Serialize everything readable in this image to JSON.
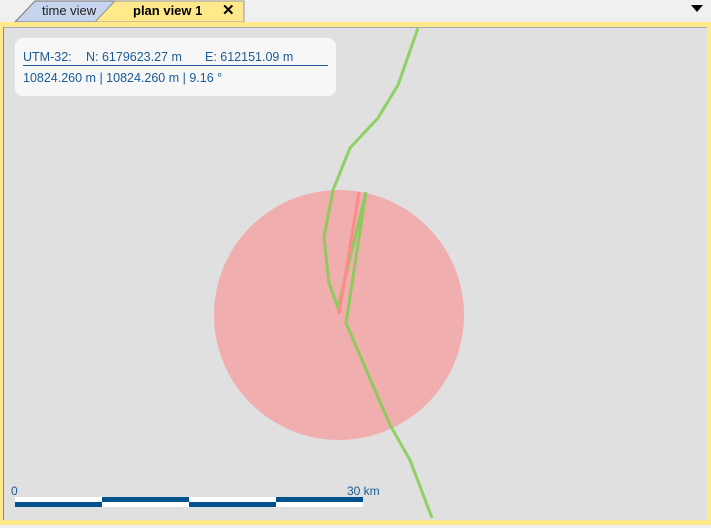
{
  "tabs": [
    {
      "label": "time view",
      "active": false
    },
    {
      "label": "plan view 1",
      "active": true
    }
  ],
  "info": {
    "line1_zone": "UTM-32:",
    "line1_north": "N: 6179623.27 m",
    "line1_east": "E: 612151.09 m",
    "line2": "10824.260 m | 10824.260 m | 9.16 °"
  },
  "scale": {
    "start": "0",
    "end": "30 km"
  },
  "colors": {
    "accent": "#1a5a96",
    "tab_active": "#ffe98a",
    "circle": "#f2a8a8",
    "track": "#7fce4f",
    "bearing": "#ff8a8a"
  }
}
